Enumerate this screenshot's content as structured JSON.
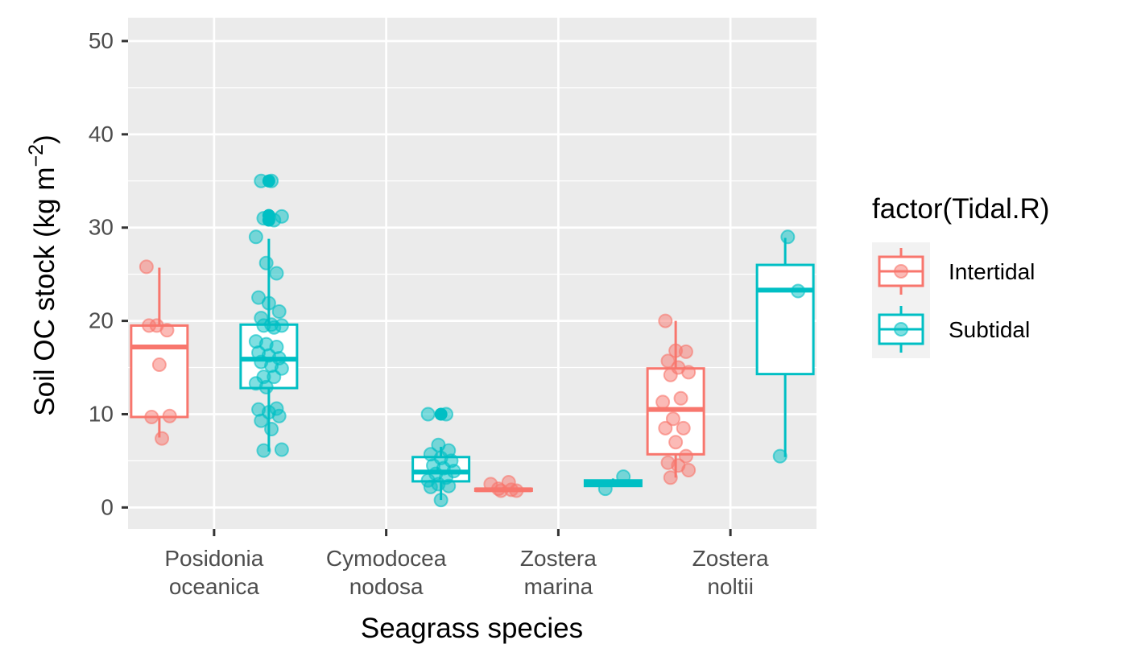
{
  "chart_data": {
    "type": "boxplot",
    "categories": [
      "Posidonia\noceanica",
      "Cymodocea\nnodosa",
      "Zostera\nmarina",
      "Zostera\nnoltii"
    ],
    "xlabel": "Seagrass species",
    "ylabel": "Soil OC stock (kg m",
    "ylabel_exponent": "−2",
    "ylabel_close": ")",
    "ylim": [
      -2.3,
      52.5
    ],
    "yticks": [
      0,
      10,
      20,
      30,
      40,
      50
    ],
    "grid": true,
    "legend": {
      "title": "factor(Tidal.R)",
      "position": "right"
    },
    "series": [
      {
        "name": "Intertidal",
        "color": "#F8766D",
        "boxes": [
          {
            "category": 0,
            "min": 7.5,
            "q1": 9.7,
            "median": 17.2,
            "q3": 19.5,
            "max": 25.7,
            "outliers": []
          },
          {
            "category": 2,
            "min": 1.7,
            "q1": 1.8,
            "median": 1.9,
            "q3": 2.0,
            "max": 2.2,
            "outliers": []
          },
          {
            "category": 3,
            "min": 3.2,
            "q1": 5.7,
            "median": 10.5,
            "q3": 14.9,
            "max": 20.0,
            "outliers": []
          }
        ],
        "points": [
          [
            0,
            25.8
          ],
          [
            0,
            19.5
          ],
          [
            0,
            19.0
          ],
          [
            0,
            19.5
          ],
          [
            0,
            15.3
          ],
          [
            0,
            9.8
          ],
          [
            0,
            9.7
          ],
          [
            0,
            7.4
          ],
          [
            2,
            1.8
          ],
          [
            2,
            2.0
          ],
          [
            2,
            2.7
          ],
          [
            2,
            2.5
          ],
          [
            2,
            1.8
          ],
          [
            2,
            1.9
          ],
          [
            3,
            20.0
          ],
          [
            3,
            16.8
          ],
          [
            3,
            16.7
          ],
          [
            3,
            15.7
          ],
          [
            3,
            15.0
          ],
          [
            3,
            14.5
          ],
          [
            3,
            14.2
          ],
          [
            3,
            11.7
          ],
          [
            3,
            11.3
          ],
          [
            3,
            9.5
          ],
          [
            3,
            8.5
          ],
          [
            3,
            8.5
          ],
          [
            3,
            7.0
          ],
          [
            3,
            5.5
          ],
          [
            3,
            4.8
          ],
          [
            3,
            4.5
          ],
          [
            3,
            4.0
          ],
          [
            3,
            3.2
          ]
        ]
      },
      {
        "name": "Subtidal",
        "color": "#00BFC4",
        "boxes": [
          {
            "category": 0,
            "min": 6.0,
            "q1": 12.8,
            "median": 15.9,
            "q3": 19.6,
            "max": 28.8,
            "outliers": [
              35.0,
              31.3,
              30.8
            ]
          },
          {
            "category": 1,
            "min": 0.8,
            "q1": 2.8,
            "median": 3.8,
            "q3": 5.4,
            "max": 6.5,
            "outliers": [
              10.0
            ]
          },
          {
            "category": 2,
            "min": 2.2,
            "q1": 2.3,
            "median": 2.6,
            "q3": 2.9,
            "max": 3.1,
            "outliers": []
          },
          {
            "category": 3,
            "min": 5.4,
            "q1": 14.3,
            "median": 23.3,
            "q3": 26.0,
            "max": 28.9,
            "outliers": []
          }
        ],
        "points": [
          [
            0,
            35.0
          ],
          [
            0,
            35.0
          ],
          [
            0,
            31.2
          ],
          [
            0,
            31.0
          ],
          [
            0,
            30.8
          ],
          [
            0,
            29.0
          ],
          [
            0,
            26.2
          ],
          [
            0,
            25.1
          ],
          [
            0,
            22.5
          ],
          [
            0,
            21.9
          ],
          [
            0,
            21.0
          ],
          [
            0,
            20.3
          ],
          [
            0,
            19.6
          ],
          [
            0,
            19.5
          ],
          [
            0,
            19.5
          ],
          [
            0,
            19.3
          ],
          [
            0,
            17.8
          ],
          [
            0,
            17.5
          ],
          [
            0,
            17.2
          ],
          [
            0,
            16.6
          ],
          [
            0,
            16.3
          ],
          [
            0,
            16.0
          ],
          [
            0,
            15.6
          ],
          [
            0,
            15.2
          ],
          [
            0,
            14.9
          ],
          [
            0,
            14.0
          ],
          [
            0,
            14.0
          ],
          [
            0,
            13.3
          ],
          [
            0,
            12.9
          ],
          [
            0,
            10.6
          ],
          [
            0,
            10.5
          ],
          [
            0,
            10.2
          ],
          [
            0,
            9.8
          ],
          [
            0,
            9.3
          ],
          [
            0,
            8.4
          ],
          [
            0,
            6.2
          ],
          [
            0,
            6.1
          ],
          [
            1,
            10.0
          ],
          [
            1,
            10.0
          ],
          [
            1,
            6.7
          ],
          [
            1,
            6.1
          ],
          [
            1,
            5.7
          ],
          [
            1,
            5.3
          ],
          [
            1,
            5.0
          ],
          [
            1,
            4.5
          ],
          [
            1,
            4.2
          ],
          [
            1,
            3.9
          ],
          [
            1,
            3.6
          ],
          [
            1,
            3.2
          ],
          [
            1,
            2.9
          ],
          [
            1,
            2.5
          ],
          [
            1,
            2.3
          ],
          [
            1,
            2.2
          ],
          [
            1,
            0.8
          ],
          [
            2,
            3.3
          ],
          [
            2,
            2.0
          ],
          [
            3,
            29.0
          ],
          [
            3,
            23.2
          ],
          [
            3,
            5.5
          ]
        ]
      }
    ]
  }
}
